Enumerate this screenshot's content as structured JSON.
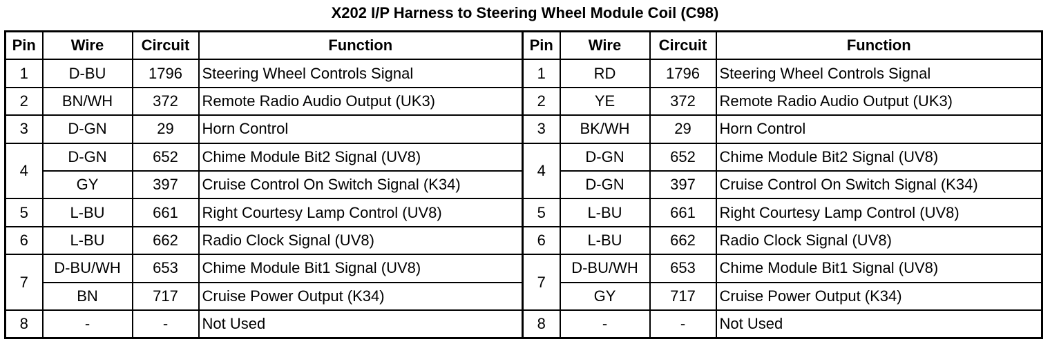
{
  "title": "X202 I/P Harness to Steering Wheel Module Coil (C98)",
  "headers": {
    "pin": "Pin",
    "wire": "Wire",
    "circuit": "Circuit",
    "function": "Function"
  },
  "left": [
    {
      "pin": "1",
      "wires": [
        {
          "wire": "D-BU",
          "circuit": "1796",
          "function": "Steering Wheel Controls Signal"
        }
      ]
    },
    {
      "pin": "2",
      "wires": [
        {
          "wire": "BN/WH",
          "circuit": "372",
          "function": "Remote Radio Audio Output (UK3)"
        }
      ]
    },
    {
      "pin": "3",
      "wires": [
        {
          "wire": "D-GN",
          "circuit": "29",
          "function": "Horn Control"
        }
      ]
    },
    {
      "pin": "4",
      "wires": [
        {
          "wire": "D-GN",
          "circuit": "652",
          "function": "Chime Module Bit2 Signal (UV8)"
        },
        {
          "wire": "GY",
          "circuit": "397",
          "function": "Cruise Control On Switch Signal (K34)"
        }
      ]
    },
    {
      "pin": "5",
      "wires": [
        {
          "wire": "L-BU",
          "circuit": "661",
          "function": "Right Courtesy Lamp Control (UV8)"
        }
      ]
    },
    {
      "pin": "6",
      "wires": [
        {
          "wire": "L-BU",
          "circuit": "662",
          "function": "Radio Clock Signal (UV8)"
        }
      ]
    },
    {
      "pin": "7",
      "wires": [
        {
          "wire": "D-BU/WH",
          "circuit": "653",
          "function": "Chime Module Bit1 Signal (UV8)"
        },
        {
          "wire": "BN",
          "circuit": "717",
          "function": "Cruise Power Output (K34)"
        }
      ]
    },
    {
      "pin": "8",
      "wires": [
        {
          "wire": "-",
          "circuit": "-",
          "function": "Not Used"
        }
      ]
    }
  ],
  "right": [
    {
      "pin": "1",
      "wires": [
        {
          "wire": "RD",
          "circuit": "1796",
          "function": "Steering Wheel Controls Signal"
        }
      ]
    },
    {
      "pin": "2",
      "wires": [
        {
          "wire": "YE",
          "circuit": "372",
          "function": "Remote Radio Audio Output (UK3)"
        }
      ]
    },
    {
      "pin": "3",
      "wires": [
        {
          "wire": "BK/WH",
          "circuit": "29",
          "function": "Horn Control"
        }
      ]
    },
    {
      "pin": "4",
      "wires": [
        {
          "wire": "D-GN",
          "circuit": "652",
          "function": "Chime Module Bit2 Signal (UV8)"
        },
        {
          "wire": "D-GN",
          "circuit": "397",
          "function": "Cruise Control On Switch Signal (K34)"
        }
      ]
    },
    {
      "pin": "5",
      "wires": [
        {
          "wire": "L-BU",
          "circuit": "661",
          "function": "Right Courtesy Lamp Control (UV8)"
        }
      ]
    },
    {
      "pin": "6",
      "wires": [
        {
          "wire": "L-BU",
          "circuit": "662",
          "function": "Radio Clock Signal (UV8)"
        }
      ]
    },
    {
      "pin": "7",
      "wires": [
        {
          "wire": "D-BU/WH",
          "circuit": "653",
          "function": "Chime Module Bit1 Signal (UV8)"
        },
        {
          "wire": "GY",
          "circuit": "717",
          "function": "Cruise Power Output (K34)"
        }
      ]
    },
    {
      "pin": "8",
      "wires": [
        {
          "wire": "-",
          "circuit": "-",
          "function": "Not Used"
        }
      ]
    }
  ]
}
